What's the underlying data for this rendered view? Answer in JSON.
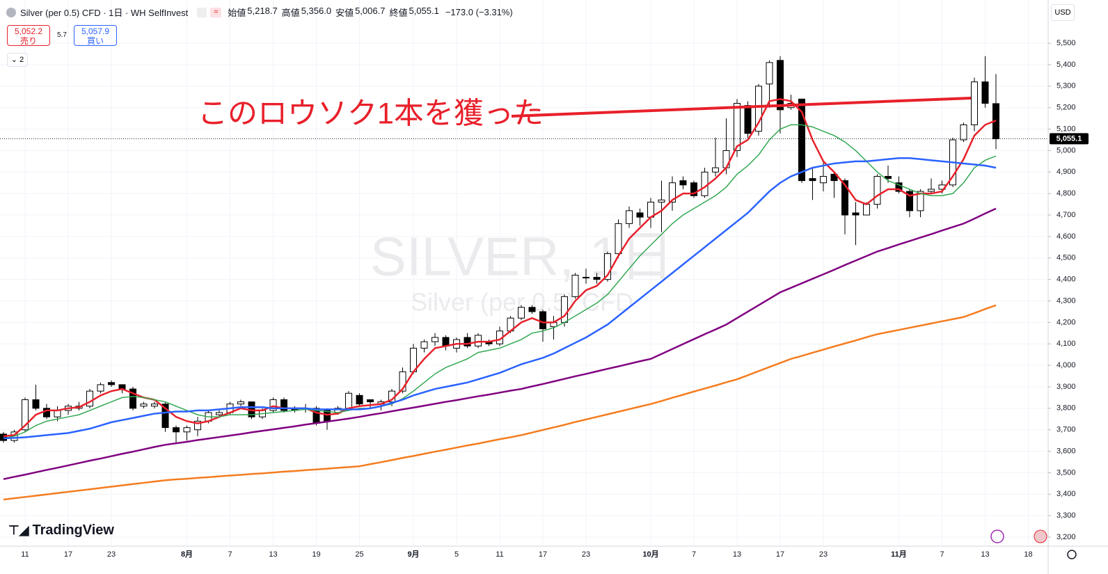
{
  "header": {
    "symbol": "Silver (per 0.5) CFD · 1日 · WH SelfInvest",
    "ohlc_labels": [
      "始値",
      "高値",
      "安値",
      "終値"
    ],
    "ohlc_values": [
      "5,218.7",
      "5,356.0",
      "5,006.7",
      "5,055.1"
    ],
    "change": "−173.0 (−3.31%)",
    "sell_price": "5,052.2",
    "sell_label": "売り",
    "spread": "5.7",
    "buy_price": "5,057.9",
    "buy_label": "買い",
    "indicators": "2",
    "currency": "USD",
    "brand": "TradingView"
  },
  "chart_data": {
    "type": "candlestick",
    "watermark": "SILVER, 1日",
    "watermark_sub": "Silver (per 0.5) CFD",
    "annotation": "このロウソク1本を獲った",
    "categories": [
      null,
      null,
      "11",
      null,
      null,
      null,
      "17",
      null,
      null,
      null,
      "23",
      null,
      null,
      null,
      null,
      null,
      null,
      "8月",
      null,
      null,
      null,
      "7",
      null,
      null,
      null,
      "13",
      null,
      null,
      null,
      "19",
      null,
      null,
      null,
      "25",
      null,
      null,
      null,
      null,
      "9月",
      null,
      null,
      null,
      "5",
      null,
      null,
      null,
      "11",
      null,
      null,
      null,
      "17",
      null,
      null,
      null,
      "23",
      null,
      null,
      null,
      null,
      null,
      "10月",
      null,
      null,
      null,
      "7",
      null,
      null,
      null,
      "13",
      null,
      null,
      null,
      "17",
      null,
      null,
      null,
      "23",
      null,
      null,
      null,
      null,
      null,
      null,
      "11月",
      null,
      null,
      null,
      "7",
      null,
      null,
      null,
      "13",
      null,
      null,
      null,
      "18"
    ],
    "open": [
      3680,
      3650,
      3700,
      3840,
      3800,
      3760,
      3790,
      3800,
      3810,
      3880,
      3920,
      3910,
      3890,
      3810,
      3810,
      3820,
      3710,
      3690,
      3700,
      3740,
      3770,
      3780,
      3820,
      3830,
      3760,
      3790,
      3840,
      3800,
      3800,
      3800,
      3790,
      3780,
      3800,
      3860,
      3840,
      3820,
      3830,
      3880,
      3970,
      4080,
      4110,
      4130,
      4080,
      4130,
      4090,
      4110,
      4100,
      4160,
      4220,
      4270,
      4250,
      4180,
      4200,
      4320,
      4410,
      4410,
      4400,
      4520,
      4660,
      4710,
      4690,
      4760,
      4760,
      4860,
      4850,
      4790,
      4900,
      4920,
      5000,
      5210,
      5090,
      5310,
      5420,
      5200,
      5240,
      4870,
      4850,
      4890,
      4860,
      4710,
      4700,
      4750,
      4880,
      4850,
      4810,
      4720,
      4810,
      4820,
      4840,
      5050,
      5120,
      5320,
      5218.7,
      null,
      null,
      null
    ],
    "high": [
      3690,
      3700,
      3850,
      3910,
      3820,
      3810,
      3820,
      3830,
      3890,
      3920,
      3930,
      3910,
      3900,
      3830,
      3830,
      3830,
      3720,
      3720,
      3760,
      3790,
      3790,
      3830,
      3840,
      3830,
      3800,
      3850,
      3850,
      3810,
      3820,
      3810,
      3800,
      3810,
      3880,
      3870,
      3840,
      3840,
      3890,
      3990,
      4100,
      4120,
      4150,
      4140,
      4130,
      4150,
      4150,
      4120,
      4180,
      4230,
      4280,
      4280,
      4260,
      4230,
      4330,
      4430,
      4450,
      4430,
      4530,
      4680,
      4740,
      4730,
      4780,
      4860,
      4880,
      4880,
      4860,
      4920,
      5060,
      5150,
      5240,
      5230,
      5310,
      5420,
      5440,
      5260,
      5240,
      4920,
      4950,
      4900,
      4870,
      4760,
      4760,
      4890,
      4930,
      4880,
      4820,
      4820,
      4870,
      4860,
      5060,
      5130,
      5340,
      5440,
      5356.0,
      null,
      null,
      null
    ],
    "low": [
      3640,
      3640,
      3690,
      3790,
      3750,
      3740,
      3770,
      3790,
      3800,
      3870,
      3900,
      3870,
      3790,
      3800,
      3800,
      3690,
      3640,
      3650,
      3670,
      3730,
      3760,
      3770,
      3810,
      3750,
      3750,
      3780,
      3780,
      3780,
      3780,
      3720,
      3700,
      3770,
      3790,
      3810,
      3800,
      3790,
      3810,
      3870,
      3960,
      4060,
      4090,
      4070,
      4060,
      4080,
      4080,
      4090,
      4090,
      4150,
      4210,
      4240,
      4110,
      4120,
      4180,
      4310,
      4380,
      4380,
      4390,
      4500,
      4640,
      4650,
      4640,
      4620,
      4720,
      4820,
      4780,
      4780,
      4880,
      4890,
      4970,
      5060,
      5070,
      5200,
      5080,
      5190,
      4850,
      4770,
      4810,
      4780,
      4610,
      4560,
      4700,
      4730,
      4850,
      4800,
      4690,
      4690,
      4800,
      4800,
      4830,
      5040,
      5090,
      5200,
      5006.7,
      null,
      null,
      null
    ],
    "close": [
      3650,
      3690,
      3840,
      3800,
      3760,
      3790,
      3810,
      3810,
      3880,
      3910,
      3910,
      3890,
      3800,
      3820,
      3820,
      3710,
      3690,
      3710,
      3740,
      3780,
      3780,
      3820,
      3830,
      3760,
      3790,
      3840,
      3790,
      3790,
      3800,
      3730,
      3740,
      3800,
      3870,
      3820,
      3830,
      3830,
      3880,
      3970,
      4080,
      4110,
      4130,
      4090,
      4120,
      4090,
      4140,
      4100,
      4160,
      4220,
      4270,
      4250,
      4170,
      4200,
      4320,
      4420,
      4410,
      4400,
      4520,
      4660,
      4720,
      4690,
      4760,
      4770,
      4850,
      4840,
      4790,
      4900,
      4920,
      5000,
      5220,
      5080,
      5300,
      5410,
      5190,
      5220,
      4860,
      4860,
      4880,
      4860,
      4700,
      4700,
      4750,
      4880,
      4870,
      4810,
      4720,
      4810,
      4820,
      4840,
      5050,
      5120,
      5320,
      5220,
      5055.1,
      null,
      null,
      null
    ],
    "up_color": "#ffffff",
    "down_color": "#000000",
    "wick_color": "#000000",
    "series": [
      {
        "color": "#e8202a",
        "values": [
          3670,
          3675,
          3720,
          3770,
          3790,
          3790,
          3800,
          3805,
          3830,
          3860,
          3880,
          3890,
          3870,
          3850,
          3840,
          3800,
          3760,
          3740,
          3730,
          3740,
          3760,
          3780,
          3800,
          3790,
          3790,
          3810,
          3800,
          3800,
          3800,
          3780,
          3770,
          3775,
          3800,
          3810,
          3815,
          3820,
          3840,
          3890,
          3970,
          4030,
          4080,
          4090,
          4100,
          4100,
          4110,
          4110,
          4120,
          4160,
          4200,
          4220,
          4200,
          4200,
          4230,
          4300,
          4350,
          4370,
          4420,
          4510,
          4590,
          4640,
          4690,
          4720,
          4770,
          4800,
          4800,
          4830,
          4870,
          4920,
          5020,
          5050,
          5130,
          5230,
          5240,
          5230,
          5180,
          5050,
          4950,
          4900,
          4840,
          4770,
          4750,
          4790,
          4820,
          4820,
          4790,
          4800,
          4800,
          4810,
          4880,
          4960,
          5070,
          5120,
          5140,
          null,
          null,
          null
        ]
      },
      {
        "color": "#33a852",
        "values": [
          3660,
          3670,
          3690,
          3720,
          3740,
          3750,
          3760,
          3770,
          3790,
          3810,
          3830,
          3850,
          3855,
          3850,
          3840,
          3830,
          3810,
          3790,
          3770,
          3760,
          3760,
          3770,
          3770,
          3770,
          3775,
          3780,
          3785,
          3790,
          3795,
          3790,
          3785,
          3780,
          3790,
          3800,
          3800,
          3810,
          3820,
          3845,
          3880,
          3920,
          3960,
          3990,
          4010,
          4030,
          4060,
          4070,
          4080,
          4100,
          4120,
          4150,
          4160,
          4175,
          4200,
          4230,
          4260,
          4290,
          4330,
          4390,
          4450,
          4510,
          4560,
          4610,
          4660,
          4700,
          4730,
          4760,
          4790,
          4830,
          4890,
          4930,
          4980,
          5050,
          5100,
          5120,
          5120,
          5110,
          5090,
          5070,
          5040,
          5000,
          4950,
          4900,
          4860,
          4840,
          4820,
          4800,
          4790,
          4790,
          4800,
          4850,
          4920,
          4955,
          4975,
          null,
          null,
          null
        ]
      },
      {
        "color": "#2962ff",
        "values": [
          3660,
          3662,
          3665,
          3670,
          3675,
          3680,
          3685,
          3695,
          3705,
          3720,
          3735,
          3745,
          3755,
          3765,
          3775,
          3780,
          3785,
          3785,
          3790,
          3790,
          3795,
          3800,
          3805,
          3805,
          3805,
          3800,
          3800,
          3800,
          3800,
          3795,
          3795,
          3795,
          3795,
          3795,
          3800,
          3810,
          3825,
          3840,
          3860,
          3875,
          3890,
          3900,
          3910,
          3920,
          3935,
          3950,
          3965,
          3985,
          4005,
          4020,
          4035,
          4055,
          4080,
          4105,
          4130,
          4160,
          4190,
          4230,
          4270,
          4310,
          4350,
          4390,
          4430,
          4470,
          4510,
          4550,
          4590,
          4630,
          4670,
          4710,
          4760,
          4810,
          4850,
          4880,
          4900,
          4920,
          4930,
          4940,
          4945,
          4950,
          4950,
          4955,
          4960,
          4965,
          4965,
          4960,
          4955,
          4950,
          4945,
          4940,
          4935,
          4930,
          4920,
          null,
          null,
          null
        ]
      },
      {
        "color": "#800080",
        "values": [
          3470,
          3481,
          3491,
          3502,
          3513,
          3523,
          3534,
          3545,
          3556,
          3566,
          3577,
          3588,
          3598,
          3609,
          3620,
          3630,
          3637,
          3644,
          3652,
          3659,
          3666,
          3673,
          3680,
          3688,
          3695,
          3702,
          3709,
          3716,
          3724,
          3731,
          3738,
          3745,
          3752,
          3760,
          3769,
          3777,
          3786,
          3795,
          3803,
          3812,
          3821,
          3830,
          3838,
          3847,
          3856,
          3864,
          3873,
          3882,
          3890,
          3902,
          3913,
          3925,
          3937,
          3949,
          3960,
          3972,
          3984,
          3995,
          4007,
          4019,
          4030,
          4053,
          4076,
          4099,
          4122,
          4145,
          4167,
          4190,
          4220,
          4250,
          4280,
          4310,
          4340,
          4361,
          4382,
          4403,
          4424,
          4445,
          4467,
          4488,
          4509,
          4530,
          4546,
          4563,
          4579,
          4595,
          4611,
          4628,
          4644,
          4660,
          4683,
          4707,
          4730,
          null,
          null,
          null
        ]
      },
      {
        "color": "#f57c1f",
        "values": [
          3375,
          3381,
          3387,
          3393,
          3399,
          3405,
          3411,
          3417,
          3423,
          3429,
          3435,
          3441,
          3447,
          3453,
          3459,
          3465,
          3469,
          3472,
          3476,
          3479,
          3483,
          3487,
          3490,
          3494,
          3497,
          3501,
          3505,
          3508,
          3512,
          3515,
          3519,
          3523,
          3526,
          3530,
          3540,
          3549,
          3559,
          3569,
          3578,
          3588,
          3598,
          3607,
          3617,
          3627,
          3636,
          3646,
          3656,
          3665,
          3675,
          3687,
          3699,
          3711,
          3723,
          3736,
          3748,
          3760,
          3772,
          3784,
          3796,
          3808,
          3820,
          3834,
          3849,
          3863,
          3878,
          3892,
          3906,
          3921,
          3935,
          3954,
          3973,
          3992,
          4011,
          4030,
          4044,
          4059,
          4073,
          4088,
          4102,
          4116,
          4131,
          4145,
          4155,
          4165,
          4175,
          4185,
          4195,
          4205,
          4215,
          4225,
          4243,
          4262,
          4280,
          null,
          null,
          null
        ]
      }
    ],
    "ylim": [
      3158,
      5604
    ],
    "yticks": [
      {
        "value": 3200,
        "label": "3,200"
      },
      {
        "value": 3300,
        "label": "3,300"
      },
      {
        "value": 3400,
        "label": "3,400"
      },
      {
        "value": 3500,
        "label": "3,500"
      },
      {
        "value": 3600,
        "label": "3,600"
      },
      {
        "value": 3700,
        "label": "3,700"
      },
      {
        "value": 3800,
        "label": "3,800"
      },
      {
        "value": 3900,
        "label": "3,900"
      },
      {
        "value": 4000,
        "label": "4,000"
      },
      {
        "value": 4100,
        "label": "4,100"
      },
      {
        "value": 4200,
        "label": "4,200"
      },
      {
        "value": 4300,
        "label": "4,300"
      },
      {
        "value": 4400,
        "label": "4,400"
      },
      {
        "value": 4500,
        "label": "4,500"
      },
      {
        "value": 4600,
        "label": "4,600"
      },
      {
        "value": 4700,
        "label": "4,700"
      },
      {
        "value": 4800,
        "label": "4,800"
      },
      {
        "value": 4900,
        "label": "4,900"
      },
      {
        "value": 5000,
        "label": "5,000"
      },
      {
        "value": 5100,
        "label": "5,100"
      },
      {
        "value": 5200,
        "label": "5,200"
      },
      {
        "value": 5300,
        "label": "5,300"
      },
      {
        "value": 5400,
        "label": "5,400"
      },
      {
        "value": 5500,
        "label": "5,500"
      }
    ],
    "last_price": {
      "value": 5055.1,
      "label": "5,055.1"
    },
    "grid": true
  }
}
